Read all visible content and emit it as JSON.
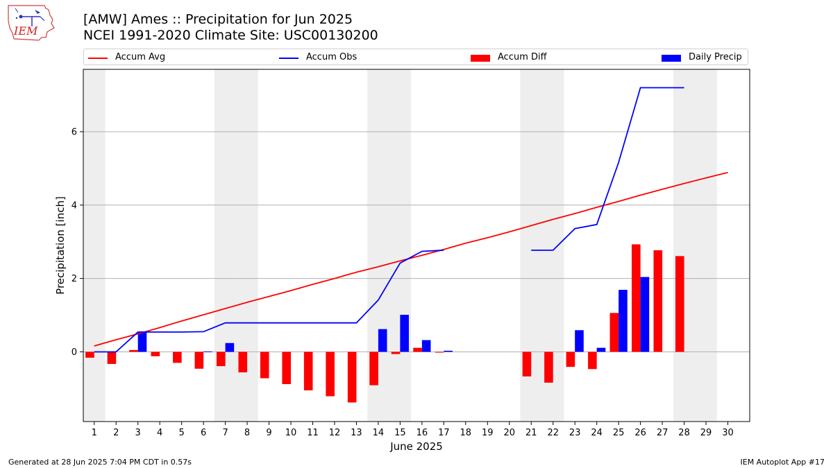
{
  "header": {
    "logo_text": "IEM",
    "title": "[AMW] Ames :: Precipitation for Jun 2025",
    "subtitle": "NCEI 1991-2020 Climate Site: USC00130200"
  },
  "footer": {
    "left": "Generated at 28 Jun 2025 7:04 PM CDT in 0.57s",
    "right": "IEM Autoplot App #17"
  },
  "colors": {
    "avg": "#ff0000",
    "obs": "#0000ff",
    "diff": "#ff0000",
    "daily": "#0000ff",
    "weekend_shade": "#eeeeee",
    "grid": "#b0b0b0"
  },
  "chart_data": {
    "type": "bar",
    "xlabel": "June 2025",
    "ylabel": "Precipitation [inch]",
    "xlim": [
      0.5,
      31.0
    ],
    "ylim": [
      -1.9,
      7.7
    ],
    "yticks": [
      0,
      2,
      4,
      6
    ],
    "ytick_labels": [
      "0",
      "2",
      "4",
      "6"
    ],
    "grid": "horizontal",
    "legend_position": "top",
    "days": [
      1,
      2,
      3,
      4,
      5,
      6,
      7,
      8,
      9,
      10,
      11,
      12,
      13,
      14,
      15,
      16,
      17,
      18,
      19,
      20,
      21,
      22,
      23,
      24,
      25,
      26,
      27,
      28,
      29,
      30
    ],
    "day_labels": [
      "1",
      "2",
      "3",
      "4",
      "5",
      "6",
      "7",
      "8",
      "9",
      "10",
      "11",
      "12",
      "13",
      "14",
      "15",
      "16",
      "17",
      "18",
      "19",
      "20",
      "21",
      "22",
      "23",
      "24",
      "25",
      "26",
      "27",
      "28",
      "29",
      "30"
    ],
    "weekend_days": [
      1,
      7,
      8,
      14,
      15,
      21,
      22,
      28,
      29
    ],
    "series": [
      {
        "name": "Accum Avg",
        "kind": "line",
        "values": [
          0.16,
          0.33,
          0.49,
          0.66,
          0.84,
          1.01,
          1.18,
          1.35,
          1.51,
          1.67,
          1.84,
          2.0,
          2.17,
          2.32,
          2.48,
          2.63,
          2.79,
          2.96,
          3.11,
          3.27,
          3.44,
          3.61,
          3.77,
          3.94,
          4.1,
          4.27,
          4.43,
          4.59,
          4.74,
          4.89
        ]
      },
      {
        "name": "Accum Obs",
        "kind": "line",
        "values": [
          0.0,
          0.0,
          0.54,
          0.54,
          0.54,
          0.55,
          0.79,
          0.79,
          0.79,
          0.79,
          0.79,
          0.79,
          0.79,
          1.41,
          2.42,
          2.74,
          2.77,
          null,
          null,
          null,
          2.77,
          2.77,
          3.36,
          3.47,
          5.16,
          7.2,
          7.2,
          7.2,
          null,
          null
        ]
      },
      {
        "name": "Accum Diff",
        "kind": "bar",
        "values": [
          -0.16,
          -0.33,
          0.05,
          -0.12,
          -0.3,
          -0.46,
          -0.39,
          -0.56,
          -0.72,
          -0.88,
          -1.05,
          -1.21,
          -1.38,
          -0.91,
          -0.06,
          0.11,
          -0.02,
          null,
          null,
          null,
          -0.67,
          -0.84,
          -0.41,
          -0.47,
          1.06,
          2.93,
          2.77,
          2.61,
          null,
          null
        ]
      },
      {
        "name": "Daily Precip",
        "kind": "bar",
        "values": [
          0.0,
          0.0,
          0.54,
          0.0,
          0.0,
          0.01,
          0.24,
          0.0,
          0.0,
          0.0,
          0.0,
          0.0,
          0.0,
          0.62,
          1.01,
          0.32,
          0.03,
          null,
          null,
          null,
          0.0,
          0.0,
          0.59,
          0.11,
          1.69,
          2.04,
          0.0,
          0.0,
          null,
          null
        ]
      }
    ]
  }
}
